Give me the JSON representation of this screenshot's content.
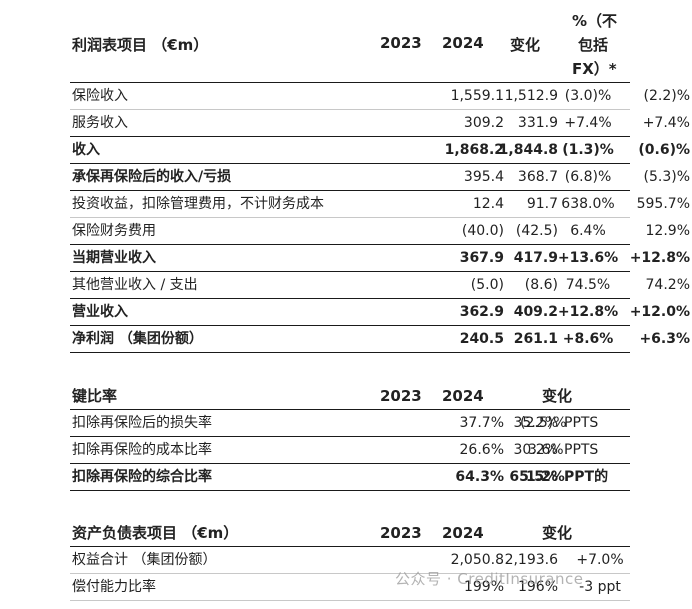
{
  "income": {
    "header": {
      "label": "利润表项目 （€m）",
      "y1": "2023",
      "y2": "2024",
      "change": "变化",
      "fx_line1": "%（不",
      "fx_line2": "包括",
      "fx_line3": "FX）*"
    },
    "rows": [
      {
        "label": "保险收入",
        "y1": "1,559.1",
        "y2": "1,512.9",
        "change": "(3.0)%",
        "fx": "(2.2)%"
      },
      {
        "label": "服务收入",
        "y1": "309.2",
        "y2": "331.9",
        "change": "+7.4%",
        "fx": "+7.4%"
      },
      {
        "label": "收入",
        "y1": "1,868.2",
        "y2": "1,844.8",
        "change": "(1.3)%",
        "fx": "(0.6)%"
      },
      {
        "label": "承保再保险后的收入/亏损",
        "y1": "395.4",
        "y2": "368.7",
        "change": "(6.8)%",
        "fx": "(5.3)%"
      },
      {
        "label": "投资收益，扣除管理费用，不计财务成本",
        "y1": "12.4",
        "y2": "91.7",
        "change": "638.0%",
        "fx": "595.7%"
      },
      {
        "label": "保险财务费用",
        "y1": "(40.0)",
        "y2": "(42.5)",
        "change": "6.4%",
        "fx": "12.9%"
      },
      {
        "label": "当期营业收入",
        "y1": "367.9",
        "y2": "417.9",
        "change": "+13.6%",
        "fx": "+12.8%"
      },
      {
        "label": "其他营业收入 / 支出",
        "y1": "(5.0)",
        "y2": "(8.6)",
        "change": "74.5%",
        "fx": "74.2%"
      },
      {
        "label": "营业收入",
        "y1": "362.9",
        "y2": "409.2",
        "change": "+12.8%",
        "fx": "+12.0%"
      },
      {
        "label": "净利润 （集团份额）",
        "y1": "240.5",
        "y2": "261.1",
        "change": "+8.6%",
        "fx": "+6.3%"
      }
    ]
  },
  "ratios": {
    "header": {
      "label": "键比率",
      "y1": "2023",
      "y2": "2024",
      "change": "变化"
    },
    "rows": [
      {
        "label": "扣除再保险后的损失率",
        "y1": "37.7%",
        "y2": "35.2%",
        "change": "(2.5)%",
        "unit": "PPTS"
      },
      {
        "label": "扣除再保险的成本比率",
        "y1": "26.6%",
        "y2": "30.2%",
        "change": "3.6%",
        "unit": "PPTS"
      },
      {
        "label": "扣除再保险的综合比率",
        "y1": "64.3%",
        "y2": "65.5%",
        "change": "1.2%",
        "unit": "PPT的"
      }
    ]
  },
  "balance": {
    "header": {
      "label": "资产负债表项目 （€m）",
      "y1": "2023",
      "y2": "2024",
      "change": "变化"
    },
    "rows": [
      {
        "label": "权益合计 （集团份额）",
        "y1": "2,050.8",
        "y2": "2,193.6",
        "change": "+7.0%"
      },
      {
        "label": "偿付能力比率",
        "y1": "199%",
        "y2": "196%",
        "change": "-3 ppt"
      }
    ]
  },
  "watermark": "公众号 · CreditInsurance"
}
